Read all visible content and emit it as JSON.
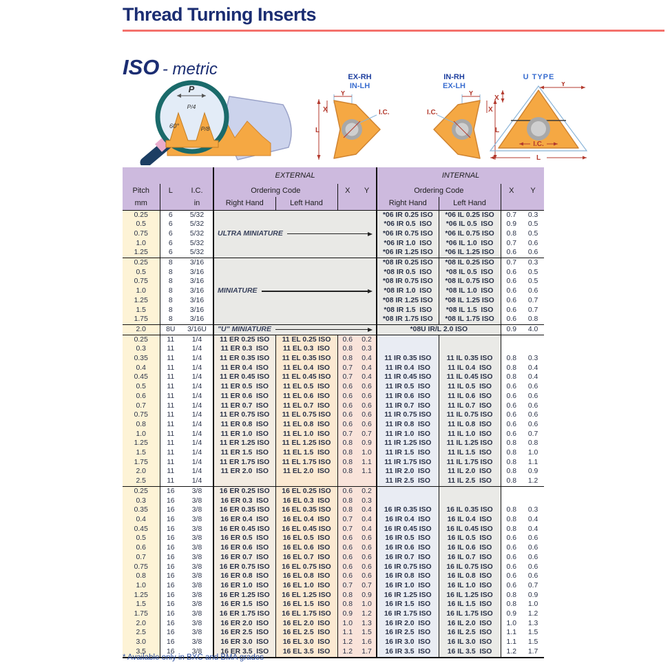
{
  "page": {
    "title": "Thread Turning Inserts",
    "iso_bold": "ISO",
    "iso_rest": "- metric",
    "footnote": "* Available only in BXC and BMA grades"
  },
  "colors": {
    "title_navy": "#1b2d72",
    "underline_red": "#f4716c",
    "header_purple": "#cdbade",
    "pitch_cream": "#fdf3d6",
    "code_blue": "#1e3d9e",
    "code_teal": "#1f97aa",
    "insert_orange": "#f5a843"
  },
  "figures": {
    "profile": {
      "p": "P",
      "p4": "P/4",
      "p8": "P/8",
      "angle": "60°"
    },
    "ex": {
      "l1": "EX-RH",
      "l2": "IN-LH"
    },
    "in": {
      "l1": "IN-RH",
      "l2": "EX-LH"
    },
    "u": {
      "title": "U TYPE"
    },
    "dims": {
      "x": "X",
      "y": "Y",
      "l": "L",
      "ic": "I.C."
    }
  },
  "table": {
    "h": {
      "pitch": "Pitch",
      "mm": "mm",
      "l": "L",
      "ic": "I.C.",
      "in": "in",
      "external": "EXTERNAL",
      "internal": "INTERNAL",
      "ordering": "Ordering Code",
      "right": "Right Hand",
      "left": "Left Hand",
      "x": "X",
      "y": "Y"
    },
    "groups": [
      {
        "kind": "mini",
        "label": "ULTRA MINIATURE",
        "rows": [
          [
            "0.25",
            "6",
            "5/32",
            "*06 IR 0.25 ISO",
            "*06 IL 0.25 ISO",
            "0.7",
            "0.3"
          ],
          [
            "0.5",
            "6",
            "5/32",
            "*06 IR 0.5  ISO",
            "*06 IL 0.5  ISO",
            "0.9",
            "0.5"
          ],
          [
            "0.75",
            "6",
            "5/32",
            "*06 IR 0.75 ISO",
            "*06 IL 0.75 ISO",
            "0.8",
            "0.5"
          ],
          [
            "1.0",
            "6",
            "5/32",
            "*06 IR 1.0  ISO",
            "*06 IL 1.0  ISO",
            "0.7",
            "0.6"
          ],
          [
            "1.25",
            "6",
            "5/32",
            "*06 IR 1.25 ISO",
            "*06 IL 1.25 ISO",
            "0.6",
            "0.6"
          ]
        ]
      },
      {
        "kind": "mini",
        "label": "MINIATURE",
        "rows": [
          [
            "0.25",
            "8",
            "3/16",
            "*08 IR 0.25 ISO",
            "*08 IL 0.25 ISO",
            "0.7",
            "0.3"
          ],
          [
            "0.5",
            "8",
            "3/16",
            "*08 IR 0.5  ISO",
            "*08 IL 0.5  ISO",
            "0.6",
            "0.5"
          ],
          [
            "0.75",
            "8",
            "3/16",
            "*08 IR 0.75 ISO",
            "*08 IL 0.75 ISO",
            "0.6",
            "0.5"
          ],
          [
            "1.0",
            "8",
            "3/16",
            "*08 IR 1.0  ISO",
            "*08 IL 1.0  ISO",
            "0.6",
            "0.6"
          ],
          [
            "1.25",
            "8",
            "3/16",
            "*08 IR 1.25 ISO",
            "*08 IL 1.25 ISO",
            "0.6",
            "0.7"
          ],
          [
            "1.5",
            "8",
            "3/16",
            "*08 IR 1.5  ISO",
            "*08 IL 1.5  ISO",
            "0.6",
            "0.7"
          ],
          [
            "1.75",
            "8",
            "3/16",
            "*08 IR 1.75 ISO",
            "*08 IL 1.75 ISO",
            "0.6",
            "0.8"
          ]
        ]
      },
      {
        "kind": "u",
        "label": "\"U\" MINIATURE",
        "row": {
          "p": "2.0",
          "l": "8U",
          "ic": "3/16U",
          "code": "*08U IR/L 2.0 ISO",
          "xi": "0.9",
          "yi": "4.0"
        }
      },
      {
        "kind": "full",
        "rows": [
          [
            "0.25",
            "11",
            "1/4",
            "11 ER 0.25 ISO",
            "11 EL 0.25 ISO",
            "0.6",
            "0.2",
            null,
            null,
            null,
            null
          ],
          [
            "0.3",
            "11",
            "1/4",
            "11 ER 0.3  ISO",
            "11 EL 0.3  ISO",
            "0.8",
            "0.3",
            null,
            null,
            null,
            null
          ],
          [
            "0.35",
            "11",
            "1/4",
            "11 ER 0.35 ISO",
            "11 EL 0.35 ISO",
            "0.8",
            "0.4",
            "11 IR 0.35 ISO",
            "11 IL 0.35 ISO",
            "0.8",
            "0.3"
          ],
          [
            "0.4",
            "11",
            "1/4",
            "11 ER 0.4  ISO",
            "11 EL 0.4  ISO",
            "0.7",
            "0.4",
            "11 IR 0.4  ISO",
            "11 IL 0.4  ISO",
            "0.8",
            "0.4"
          ],
          [
            "0.45",
            "11",
            "1/4",
            "11 ER 0.45 ISO",
            "11 EL 0.45 ISO",
            "0.7",
            "0.4",
            "11 IR 0.45 ISO",
            "11 IL 0.45 ISO",
            "0.8",
            "0.4"
          ],
          [
            "0.5",
            "11",
            "1/4",
            "11 ER 0.5  ISO",
            "11 EL 0.5  ISO",
            "0.6",
            "0.6",
            "11 IR 0.5  ISO",
            "11 IL 0.5  ISO",
            "0.6",
            "0.6"
          ],
          [
            "0.6",
            "11",
            "1/4",
            "11 ER 0.6  ISO",
            "11 EL 0.6  ISO",
            "0.6",
            "0.6",
            "11 IR 0.6  ISO",
            "11 IL 0.6  ISO",
            "0.6",
            "0.6"
          ],
          [
            "0.7",
            "11",
            "1/4",
            "11 ER 0.7  ISO",
            "11 EL 0.7  ISO",
            "0.6",
            "0.6",
            "11 IR 0.7  ISO",
            "11 IL 0.7  ISO",
            "0.6",
            "0.6"
          ],
          [
            "0.75",
            "11",
            "1/4",
            "11 ER 0.75 ISO",
            "11 EL 0.75 ISO",
            "0.6",
            "0.6",
            "11 IR 0.75 ISO",
            "11 IL 0.75 ISO",
            "0.6",
            "0.6"
          ],
          [
            "0.8",
            "11",
            "1/4",
            "11 ER 0.8  ISO",
            "11 EL 0.8  ISO",
            "0.6",
            "0.6",
            "11 IR 0.8  ISO",
            "11 IL 0.8  ISO",
            "0.6",
            "0.6"
          ],
          [
            "1.0",
            "11",
            "1/4",
            "11 ER 1.0  ISO",
            "11 EL 1.0  ISO",
            "0.7",
            "0.7",
            "11 IR 1.0  ISO",
            "11 IL 1.0  ISO",
            "0.6",
            "0.7"
          ],
          [
            "1.25",
            "11",
            "1/4",
            "11 ER 1.25 ISO",
            "11 EL 1.25 ISO",
            "0.8",
            "0.9",
            "11 IR 1.25 ISO",
            "11 IL 1.25 ISO",
            "0.8",
            "0.8"
          ],
          [
            "1.5",
            "11",
            "1/4",
            "11 ER 1.5  ISO",
            "11 EL 1.5  ISO",
            "0.8",
            "1.0",
            "11 IR 1.5  ISO",
            "11 IL 1.5  ISO",
            "0.8",
            "1.0"
          ],
          [
            "1.75",
            "11",
            "1/4",
            "11 ER 1.75 ISO",
            "11 EL 1.75 ISO",
            "0.8",
            "1.1",
            "11 IR 1.75 ISO",
            "11 IL 1.75 ISO",
            "0.8",
            "1.1"
          ],
          [
            "2.0",
            "11",
            "1/4",
            "11 ER 2.0  ISO",
            "11 EL 2.0  ISO",
            "0.8",
            "1.1",
            "11 IR 2.0  ISO",
            "11 IL 2.0  ISO",
            "0.8",
            "0.9"
          ],
          [
            "2.5",
            "11",
            "1/4",
            null,
            null,
            null,
            null,
            "11 IR 2.5  ISO",
            "11 IL 2.5  ISO",
            "0.8",
            "1.2"
          ]
        ]
      },
      {
        "kind": "full",
        "rows": [
          [
            "0.25",
            "16",
            "3/8",
            "16 ER 0.25 ISO",
            "16 EL 0.25 ISO",
            "0.6",
            "0.2",
            null,
            null,
            null,
            null
          ],
          [
            "0.3",
            "16",
            "3/8",
            "16 ER 0.3  ISO",
            "16 EL 0.3  ISO",
            "0.8",
            "0.3",
            null,
            null,
            null,
            null
          ],
          [
            "0.35",
            "16",
            "3/8",
            "16 ER 0.35 ISO",
            "16 EL 0.35 ISO",
            "0.8",
            "0.4",
            "16 IR 0.35 ISO",
            "16 IL 0.35 ISO",
            "0.8",
            "0.3"
          ],
          [
            "0.4",
            "16",
            "3/8",
            "16 ER 0.4  ISO",
            "16 EL 0.4  ISO",
            "0.7",
            "0.4",
            "16 IR 0.4  ISO",
            "16 IL 0.4  ISO",
            "0.8",
            "0.4"
          ],
          [
            "0.45",
            "16",
            "3/8",
            "16 ER 0.45 ISO",
            "16 EL 0.45 ISO",
            "0.7",
            "0.4",
            "16 IR 0.45 ISO",
            "16 IL 0.45 ISO",
            "0.8",
            "0.4"
          ],
          [
            "0.5",
            "16",
            "3/8",
            "16 ER 0.5  ISO",
            "16 EL 0.5  ISO",
            "0.6",
            "0.6",
            "16 IR 0.5  ISO",
            "16 IL 0.5  ISO",
            "0.6",
            "0.6"
          ],
          [
            "0.6",
            "16",
            "3/8",
            "16 ER 0.6  ISO",
            "16 EL 0.6  ISO",
            "0.6",
            "0.6",
            "16 IR 0.6  ISO",
            "16 IL 0.6  ISO",
            "0.6",
            "0.6"
          ],
          [
            "0.7",
            "16",
            "3/8",
            "16 ER 0.7  ISO",
            "16 EL 0.7  ISO",
            "0.6",
            "0.6",
            "16 IR 0.7  ISO",
            "16 IL 0.7  ISO",
            "0.6",
            "0.6"
          ],
          [
            "0.75",
            "16",
            "3/8",
            "16 ER 0.75 ISO",
            "16 EL 0.75 ISO",
            "0.6",
            "0.6",
            "16 IR 0.75 ISO",
            "16 IL 0.75 ISO",
            "0.6",
            "0.6"
          ],
          [
            "0.8",
            "16",
            "3/8",
            "16 ER 0.8  ISO",
            "16 EL 0.8  ISO",
            "0.6",
            "0.6",
            "16 IR 0.8  ISO",
            "16 IL 0.8  ISO",
            "0.6",
            "0.6"
          ],
          [
            "1.0",
            "16",
            "3/8",
            "16 ER 1.0  ISO",
            "16 EL 1.0  ISO",
            "0.7",
            "0.7",
            "16 IR 1.0  ISO",
            "16 IL 1.0  ISO",
            "0.6",
            "0.7"
          ],
          [
            "1.25",
            "16",
            "3/8",
            "16 ER 1.25 ISO",
            "16 EL 1.25 ISO",
            "0.8",
            "0.9",
            "16 IR 1.25 ISO",
            "16 IL 1.25 ISO",
            "0.8",
            "0.9"
          ],
          [
            "1.5",
            "16",
            "3/8",
            "16 ER 1.5  ISO",
            "16 EL 1.5  ISO",
            "0.8",
            "1.0",
            "16 IR 1.5  ISO",
            "16 IL 1.5  ISO",
            "0.8",
            "1.0"
          ],
          [
            "1.75",
            "16",
            "3/8",
            "16 ER 1.75 ISO",
            "16 EL 1.75 ISO",
            "0.9",
            "1.2",
            "16 IR 1.75 ISO",
            "16 IL 1.75 ISO",
            "0.9",
            "1.2"
          ],
          [
            "2.0",
            "16",
            "3/8",
            "16 ER 2.0  ISO",
            "16 EL 2.0  ISO",
            "1.0",
            "1.3",
            "16 IR 2.0  ISO",
            "16 IL 2.0  ISO",
            "1.0",
            "1.3"
          ],
          [
            "2.5",
            "16",
            "3/8",
            "16 ER 2.5  ISO",
            "16 EL 2.5  ISO",
            "1.1",
            "1.5",
            "16 IR 2.5  ISO",
            "16 IL 2.5  ISO",
            "1.1",
            "1.5"
          ],
          [
            "3.0",
            "16",
            "3/8",
            "16 ER 3.0  ISO",
            "16 EL 3.0  ISO",
            "1.2",
            "1.6",
            "16 IR 3.0  ISO",
            "16 IL 3.0  ISO",
            "1.1",
            "1.5"
          ],
          [
            "3.5",
            "16",
            "3/8",
            "16 ER 3.5  ISO",
            "16 EL 3.5  ISO",
            "1.2",
            "1.7",
            "16 IR 3.5  ISO",
            "16 IL 3.5  ISO",
            "1.2",
            "1.7"
          ]
        ]
      }
    ]
  }
}
